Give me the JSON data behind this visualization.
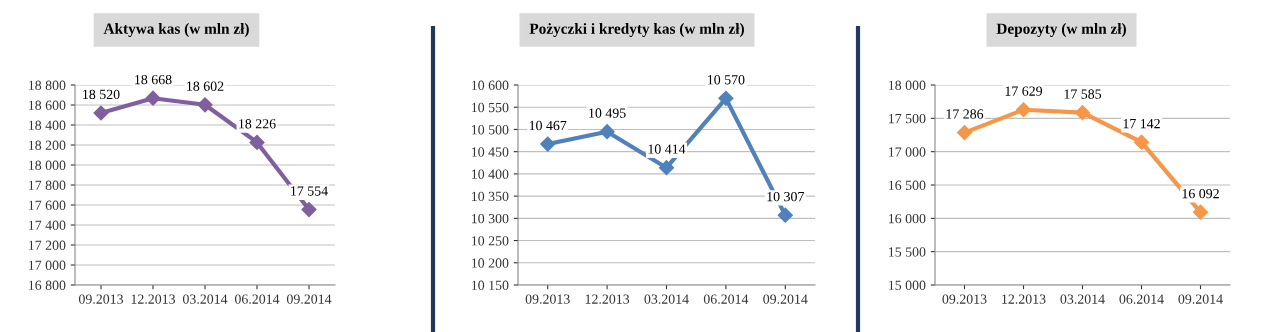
{
  "chart_data": [
    {
      "type": "line",
      "title": "Aktywa kas (w mln zł)",
      "categories": [
        "09.2013",
        "12.2013",
        "03.2014",
        "06.2014",
        "09.2014"
      ],
      "series": [
        {
          "color": "#7f5fa0",
          "values": [
            18520,
            18668,
            18602,
            18226,
            17554
          ],
          "value_labels": [
            "18 520",
            "18 668",
            "18 602",
            "18 226",
            "17 554"
          ]
        }
      ],
      "ylim": [
        16800,
        18800
      ],
      "yticks": [
        {
          "value": 16800,
          "label": "16 800"
        },
        {
          "value": 17000,
          "label": "17 000"
        },
        {
          "value": 17200,
          "label": "17 200"
        },
        {
          "value": 17400,
          "label": "17 400"
        },
        {
          "value": 17600,
          "label": "17 600"
        },
        {
          "value": 17800,
          "label": "17 800"
        },
        {
          "value": 18000,
          "label": "18 000"
        },
        {
          "value": 18200,
          "label": "18 200"
        },
        {
          "value": 18400,
          "label": "18 400"
        },
        {
          "value": 18600,
          "label": "18 600"
        },
        {
          "value": 18800,
          "label": "18 800"
        }
      ],
      "grid": "y",
      "marker": "diamond",
      "line_style": "solid",
      "legend": false
    },
    {
      "type": "line",
      "title": "Pożyczki i kredyty kas (w mln zł)",
      "categories": [
        "09.2013",
        "12.2013",
        "03.2014",
        "06.2014",
        "09.2014"
      ],
      "series": [
        {
          "color": "#4f81bd",
          "values": [
            10467,
            10495,
            10414,
            10570,
            10307
          ],
          "value_labels": [
            "10 467",
            "10 495",
            "10 414",
            "10 570",
            "10 307"
          ]
        }
      ],
      "ylim": [
        10150,
        10600
      ],
      "yticks": [
        {
          "value": 10150,
          "label": "10 150"
        },
        {
          "value": 10200,
          "label": "10 200"
        },
        {
          "value": 10250,
          "label": "10 250"
        },
        {
          "value": 10300,
          "label": "10 300"
        },
        {
          "value": 10350,
          "label": "10 350"
        },
        {
          "value": 10400,
          "label": "10 400"
        },
        {
          "value": 10450,
          "label": "10 450"
        },
        {
          "value": 10500,
          "label": "10 500"
        },
        {
          "value": 10550,
          "label": "10 550"
        },
        {
          "value": 10600,
          "label": "10 600"
        }
      ],
      "grid": "y",
      "marker": "diamond",
      "line_style": "solid",
      "legend": false
    },
    {
      "type": "line",
      "title": "Depozyty (w mln zł)",
      "categories": [
        "09.2013",
        "12.2013",
        "03.2014",
        "06.2014",
        "09.2014"
      ],
      "series": [
        {
          "color": "#f79646",
          "values": [
            17286,
            17629,
            17585,
            17142,
            16092
          ],
          "value_labels": [
            "17 286",
            "17 629",
            "17 585",
            "17 142",
            "16 092"
          ]
        }
      ],
      "ylim": [
        15000,
        18000
      ],
      "yticks": [
        {
          "value": 15000,
          "label": "15 000"
        },
        {
          "value": 15500,
          "label": "15 500"
        },
        {
          "value": 16000,
          "label": "16 000"
        },
        {
          "value": 16500,
          "label": "16 500"
        },
        {
          "value": 17000,
          "label": "17 000"
        },
        {
          "value": 17500,
          "label": "17 500"
        },
        {
          "value": 18000,
          "label": "18 000"
        }
      ],
      "grid": "y",
      "marker": "diamond",
      "line_style": "solid",
      "legend": false
    }
  ]
}
